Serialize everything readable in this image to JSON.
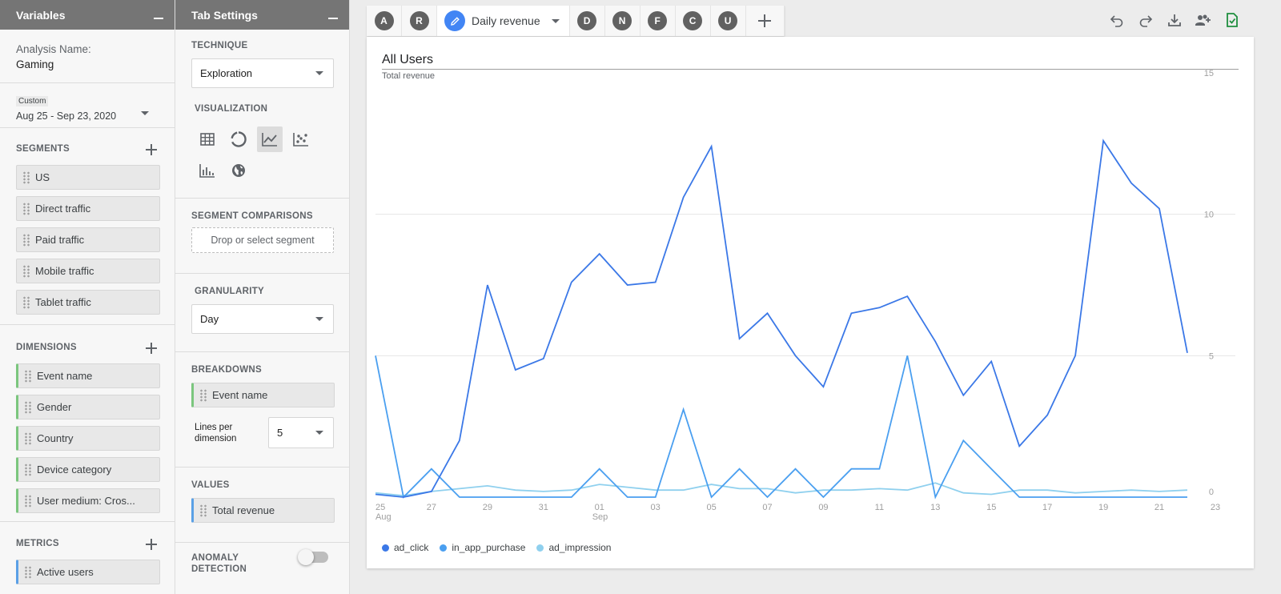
{
  "variables": {
    "header": "Variables",
    "analysis_label": "Analysis Name:",
    "analysis_name": "Gaming",
    "date_badge": "Custom",
    "date_range": "Aug 25 - Sep 23, 2020",
    "segments_title": "SEGMENTS",
    "segments": [
      "US",
      "Direct traffic",
      "Paid traffic",
      "Mobile traffic",
      "Tablet traffic"
    ],
    "dimensions_title": "DIMENSIONS",
    "dimensions": [
      "Event name",
      "Gender",
      "Country",
      "Device category",
      "User medium: Cros..."
    ],
    "metrics_title": "METRICS",
    "metrics": [
      "Active users"
    ]
  },
  "tab_settings": {
    "header": "Tab Settings",
    "technique_title": "TECHNIQUE",
    "technique_value": "Exploration",
    "visualization_title": "VISUALIZATION",
    "viz_icons": [
      "table-icon",
      "donut-chart-icon",
      "line-chart-icon",
      "scatter-plot-icon",
      "bar-chart-icon",
      "globe-icon"
    ],
    "viz_active": "line-chart-icon",
    "segment_comparisons_title": "SEGMENT COMPARISONS",
    "segment_drop_placeholder": "Drop or select segment",
    "granularity_title": "GRANULARITY",
    "granularity_value": "Day",
    "breakdowns_title": "BREAKDOWNS",
    "breakdown_chip": "Event name",
    "lines_per_dimension_label": "Lines per dimension",
    "lines_per_dimension_value": "5",
    "values_title": "VALUES",
    "values_chip": "Total revenue",
    "anomaly_label": "ANOMALY DETECTION",
    "anomaly_on": false
  },
  "tabs": {
    "letters_before": [
      "A",
      "R"
    ],
    "active_label": "Daily revenue",
    "letters_after": [
      "D",
      "N",
      "F",
      "C",
      "U"
    ]
  },
  "toolbar_icons": [
    "undo-icon",
    "redo-icon",
    "download-icon",
    "share-icon",
    "save-icon"
  ],
  "colors": {
    "accent": "#4285f4",
    "ad_click": "#3b78e7",
    "in_app_purchase": "#4a9ff0",
    "ad_impression": "#8fd0ee",
    "dimension_bar": "#7bc67e",
    "metric_bar": "#5aa0e6",
    "save_icon": "#1e8e3e"
  },
  "chart_data": {
    "type": "line",
    "title": "All Users",
    "subtitle": "Total revenue",
    "x": [
      "Aug 25",
      "Aug 26",
      "Aug 27",
      "Aug 28",
      "Aug 29",
      "Aug 30",
      "Aug 31",
      "Sep 01",
      "Sep 02",
      "Sep 03",
      "Sep 04",
      "Sep 05",
      "Sep 06",
      "Sep 07",
      "Sep 08",
      "Sep 09",
      "Sep 10",
      "Sep 11",
      "Sep 12",
      "Sep 13",
      "Sep 14",
      "Sep 15",
      "Sep 16",
      "Sep 17",
      "Sep 18",
      "Sep 19",
      "Sep 20",
      "Sep 21",
      "Sep 22",
      "Sep 23"
    ],
    "x_tick_labels": [
      {
        "day": "25",
        "month": "Aug"
      },
      {
        "day": "27"
      },
      {
        "day": "29"
      },
      {
        "day": "31"
      },
      {
        "day": "01",
        "month": "Sep"
      },
      {
        "day": "03"
      },
      {
        "day": "05"
      },
      {
        "day": "07"
      },
      {
        "day": "09"
      },
      {
        "day": "11"
      },
      {
        "day": "13"
      },
      {
        "day": "15"
      },
      {
        "day": "17"
      },
      {
        "day": "19"
      },
      {
        "day": "21"
      },
      {
        "day": "23"
      }
    ],
    "y_ticks": [
      "15",
      "10",
      "5",
      "0"
    ],
    "ylim": [
      0,
      15
    ],
    "series": [
      {
        "name": "ad_click",
        "values": [
          0.1,
          0,
          0.2,
          2.0,
          7.5,
          4.5,
          4.9,
          7.6,
          8.6,
          7.5,
          7.6,
          10.6,
          12.4,
          5.6,
          6.5,
          5.0,
          3.9,
          6.5,
          6.7,
          7.1,
          5.5,
          3.6,
          4.8,
          1.8,
          2.9,
          5.0,
          12.6,
          11.1,
          10.2,
          5.1
        ]
      },
      {
        "name": "in_app_purchase",
        "values": [
          5.0,
          0,
          1.0,
          0,
          0,
          0,
          0,
          0,
          1.0,
          0,
          0,
          3.1,
          0,
          1.0,
          0,
          1.0,
          0,
          1.0,
          1.0,
          5.0,
          0,
          2.0,
          1.0,
          0,
          0,
          0,
          0,
          0,
          0,
          0
        ]
      },
      {
        "name": "ad_impression",
        "values": [
          0.15,
          0.05,
          0.2,
          0.3,
          0.4,
          0.25,
          0.2,
          0.25,
          0.45,
          0.35,
          0.25,
          0.25,
          0.45,
          0.3,
          0.3,
          0.15,
          0.25,
          0.25,
          0.3,
          0.25,
          0.5,
          0.15,
          0.1,
          0.25,
          0.25,
          0.15,
          0.2,
          0.25,
          0.2,
          0.25
        ]
      }
    ],
    "grid": true,
    "legend_position": "bottom-left"
  }
}
